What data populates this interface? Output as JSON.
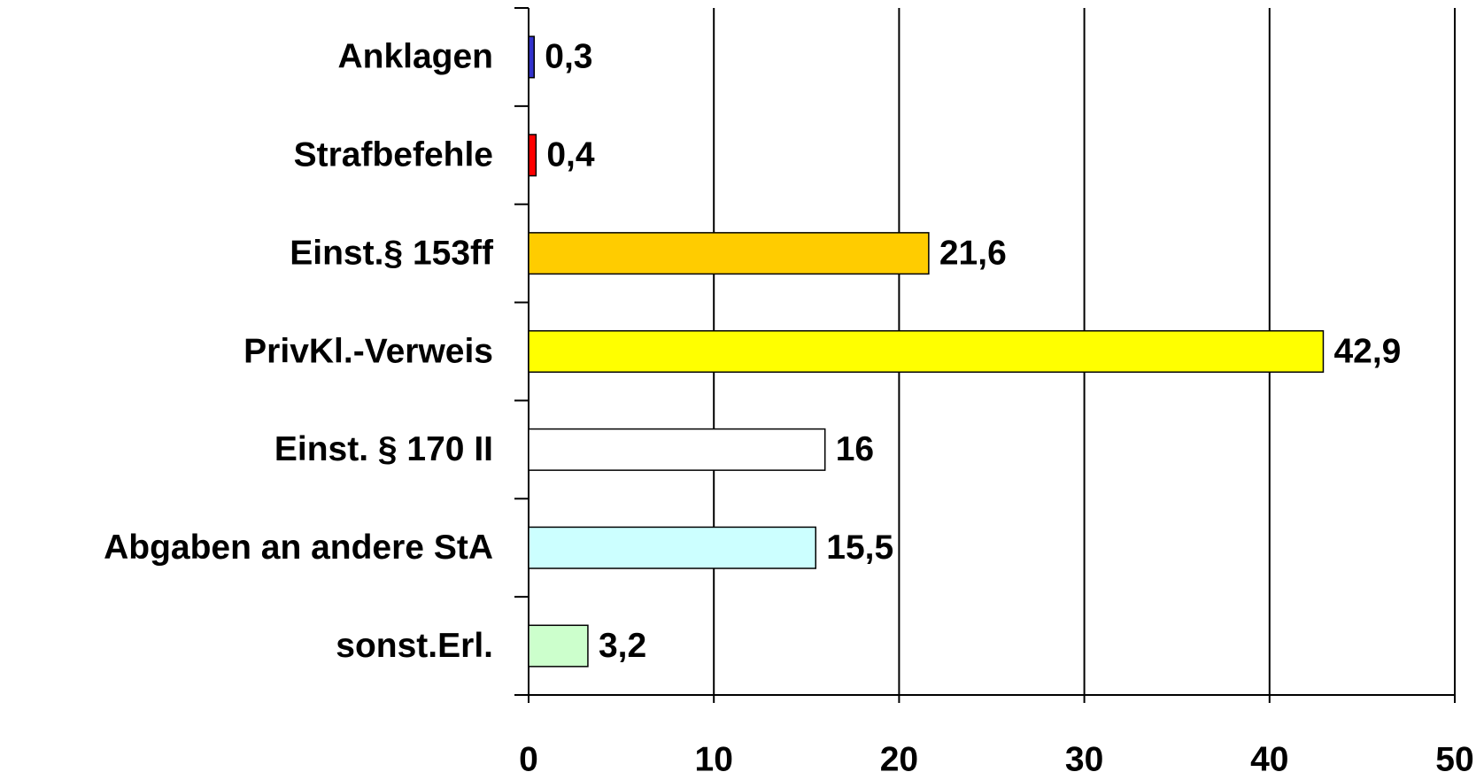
{
  "chart_data": {
    "type": "bar",
    "orientation": "horizontal",
    "categories": [
      "Anklagen",
      "Strafbefehle",
      "Einst.§ 153ff",
      "PrivKl.-Verweis",
      "Einst. § 170 II",
      "Abgaben an andere StA",
      "sonst.Erl."
    ],
    "values": [
      0.3,
      0.4,
      21.6,
      42.9,
      16,
      15.5,
      3.2
    ],
    "value_labels": [
      "0,3",
      "0,4",
      "21,6",
      "42,9",
      "16",
      "15,5",
      "3,2"
    ],
    "colors": [
      "#3333cc",
      "#ff0000",
      "#ffcc00",
      "#ffff00",
      "#ffffff",
      "#ccffff",
      "#ccffcc"
    ],
    "xlim": [
      0,
      50
    ],
    "xticks": [
      0,
      10,
      20,
      30,
      40,
      50
    ],
    "grid": true
  }
}
